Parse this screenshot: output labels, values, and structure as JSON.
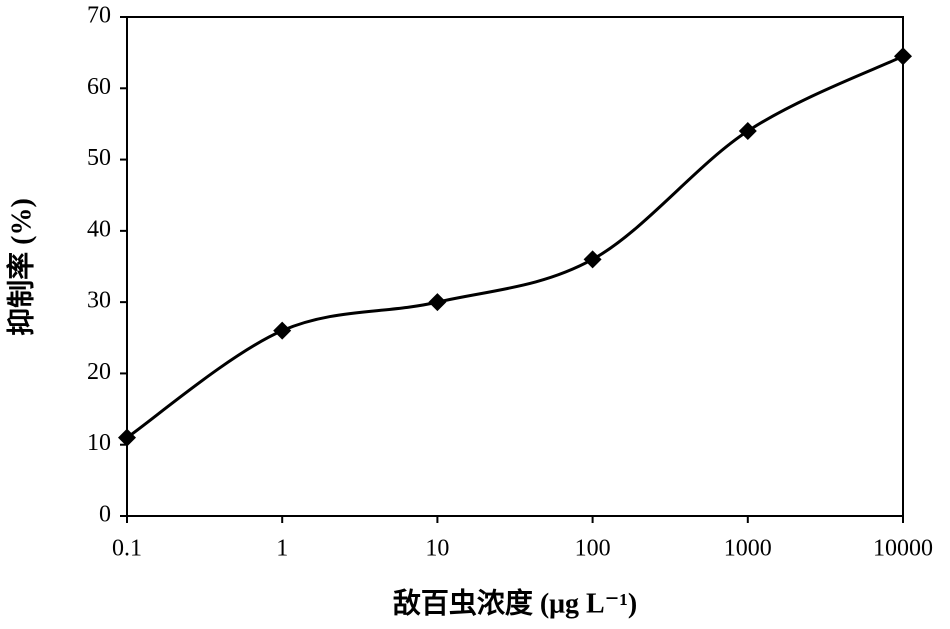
{
  "chart_data": {
    "type": "line",
    "x_label": "敌百虫浓度 (μg L⁻¹)",
    "y_label": "抑制率 (%)",
    "x": [
      0.1,
      1,
      10,
      100,
      1000,
      10000
    ],
    "series": [
      {
        "values": [
          11,
          26,
          30,
          36,
          54,
          64.5
        ],
        "color": "#000000"
      }
    ],
    "xlim": [
      0.1,
      10000
    ],
    "xticks": [
      0.1,
      1,
      10,
      100,
      1000,
      10000
    ],
    "x_log": true,
    "ylim": [
      0,
      70
    ],
    "yticks": [
      0,
      10,
      20,
      30,
      40,
      50,
      60,
      70
    ],
    "smooth": true,
    "marker": "diamond"
  }
}
